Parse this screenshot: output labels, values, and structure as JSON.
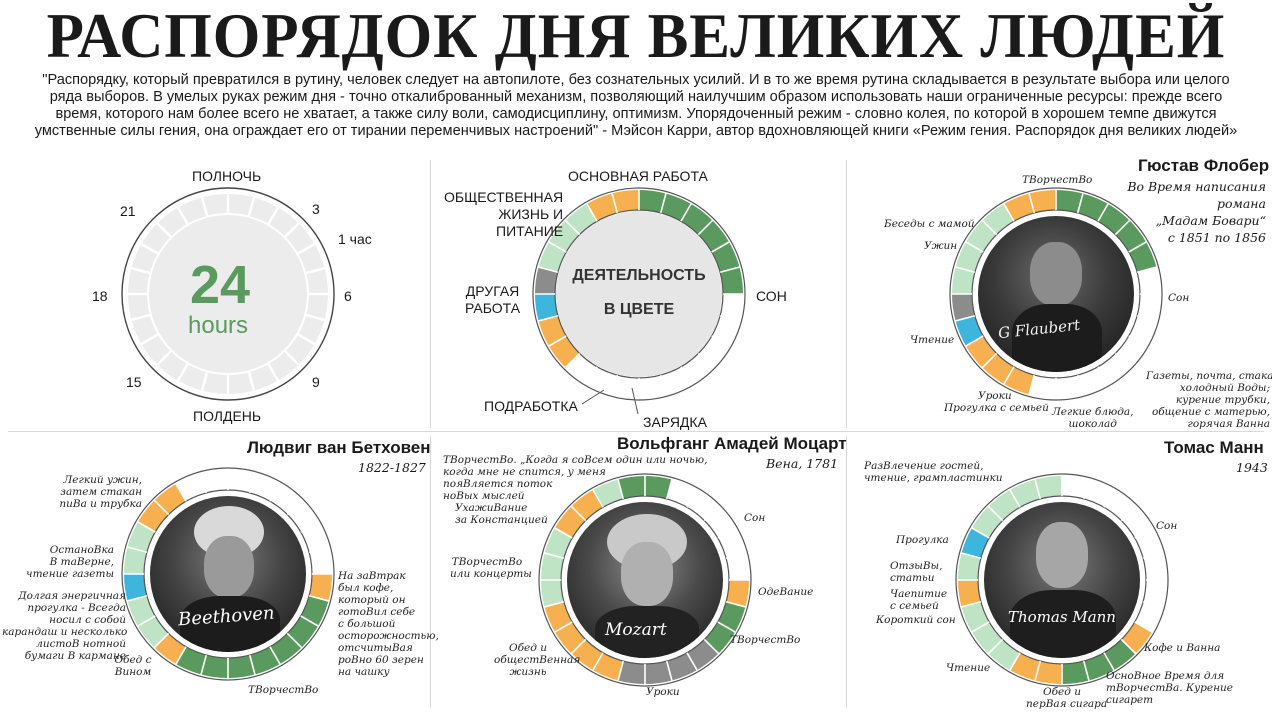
{
  "title": "РАСПОРЯДОК ДНЯ ВЕЛИКИХ ЛЮДЕЙ",
  "quote": "\"Распорядку, который превратился в рутину, человек следует на автопилоте, без сознательных усилий. И в то же время рутина складывается в результате выбора или целого ряда выборов. В умелых руках режим дня - точно откалиброванный механизм, позволяющий наилучшим образом использовать наши ограниченные ресурсы: прежде всего время, которого нам более всего не хватает, а также силу воли, самодисциплину, оптимизм. Упорядоченный режим - словно колея, по которой в хорошем темпе движутся умственные силы гения, она ограждает его от тирании переменчивых настроений\" - Мэйсон Карри, автор вдохновляющей книги «Режим гения. Распорядок дня великих людей»",
  "colors": {
    "work": "#5a9a5e",
    "social": "#f6b04f",
    "other_work": "#bfe3c5",
    "side_job": "#8c8c8c",
    "exercise": "#3eb5dd",
    "sleep": "#ffffff",
    "clock_face": "#ececec"
  },
  "clock": {
    "midnight": "ПОЛНОЧЬ",
    "noon": "ПОЛДЕНЬ",
    "h3": "3",
    "h6": "6",
    "h9": "9",
    "h15": "15",
    "h18": "18",
    "h21": "21",
    "one_hour": "1 час",
    "big": "24",
    "unit": "hours"
  },
  "legend": {
    "center_line1": "ДЕЯТЕЛЬНОСТЬ",
    "center_line2": "В ЦВЕТЕ",
    "main_work": "ОСНОВНАЯ РАБОТА",
    "social": "ОБЩЕСТВЕННАЯ\nЖИЗНЬ И\nПИТАНИЕ",
    "other_work": "ДРУГАЯ\nРАБОТА",
    "sleep": "СОН",
    "side_job": "ПОДРАБОТКА",
    "exercise": "ЗАРЯДКА"
  },
  "flaubert": {
    "name": "Гюстав Флобер",
    "subtitle": "Во Время написания\nромана\n„Мадам Бовари“\nс 1851 по 1856",
    "labels": {
      "creative": "ТВорчестВо",
      "talk": "Беседы с мамой",
      "dinner": "Ужин",
      "sleep": "Сон",
      "reading": "Чтение",
      "lessons": "Уроки",
      "walk": "Прогулка с семьей",
      "light_meal": "Легкие блюда,\nшоколад",
      "morning": "Газеты, почта, стакан\nхолодный Воды;\nкурение трубки,\nобщение с матерью,\nгорячая Ванна"
    }
  },
  "beethoven": {
    "name": "Людвиг ван Бетховен",
    "subtitle": "1822-1827",
    "labels": {
      "light_dinner": "Легкий ужин,\nзатем стакан\nпиВа и трубка",
      "tavern": "ОстаноВка\nВ таВерне,\nчтение газеты",
      "walk": "Долгая энергичная\nпрогулка - Всегда\nносил с собой\nкарандаш и несколько\nлистоВ нотной\nбумаги В кармане",
      "lunch": "Обед с\nВином",
      "creative": "ТВорчестВо",
      "breakfast": "На заВтрак\nбыл кофе,\nкоторый он\nготоВил себе\nс большой\nосторожностью,\nотсчитыВая\nроВно 60 зерен\nна чашку"
    }
  },
  "mozart": {
    "name": "Вольфганг Амадей Моцарт",
    "subtitle": "Вена, 1781",
    "labels": {
      "creative_night": "ТВорчестВо. „Когда я соВсем один или ночью,\nкогда мне не спится, у меня\nпояВляется поток\nноВых мыслей",
      "courting": "УхажиВание\nза Констанцией",
      "sleep": "Сон",
      "creative_concerts": "ТВорчестВо\nили концерты",
      "dressing": "ОдеВание",
      "creative": "ТВорчестВо",
      "lunch": "Обед и\nобщестВенная\nжизнь",
      "lessons": "Уроки"
    }
  },
  "mann": {
    "name": "Томас Манн",
    "subtitle": "1943",
    "labels": {
      "guests": "РазВлечение гостей,\nчтение, грампластинки",
      "sleep": "Сон",
      "walk": "Прогулка",
      "reviews": "ОтзыВы,\nстатьи",
      "tea": "Чаепитие\nс семьей",
      "nap": "Короткий сон",
      "coffee": "Кофе и Ванна",
      "reading": "Чтение",
      "lunch": "Обед и\nперВая сигара",
      "main": "ОсноВное Время для\nтВорчестВа. Курение\nсигарет"
    }
  }
}
